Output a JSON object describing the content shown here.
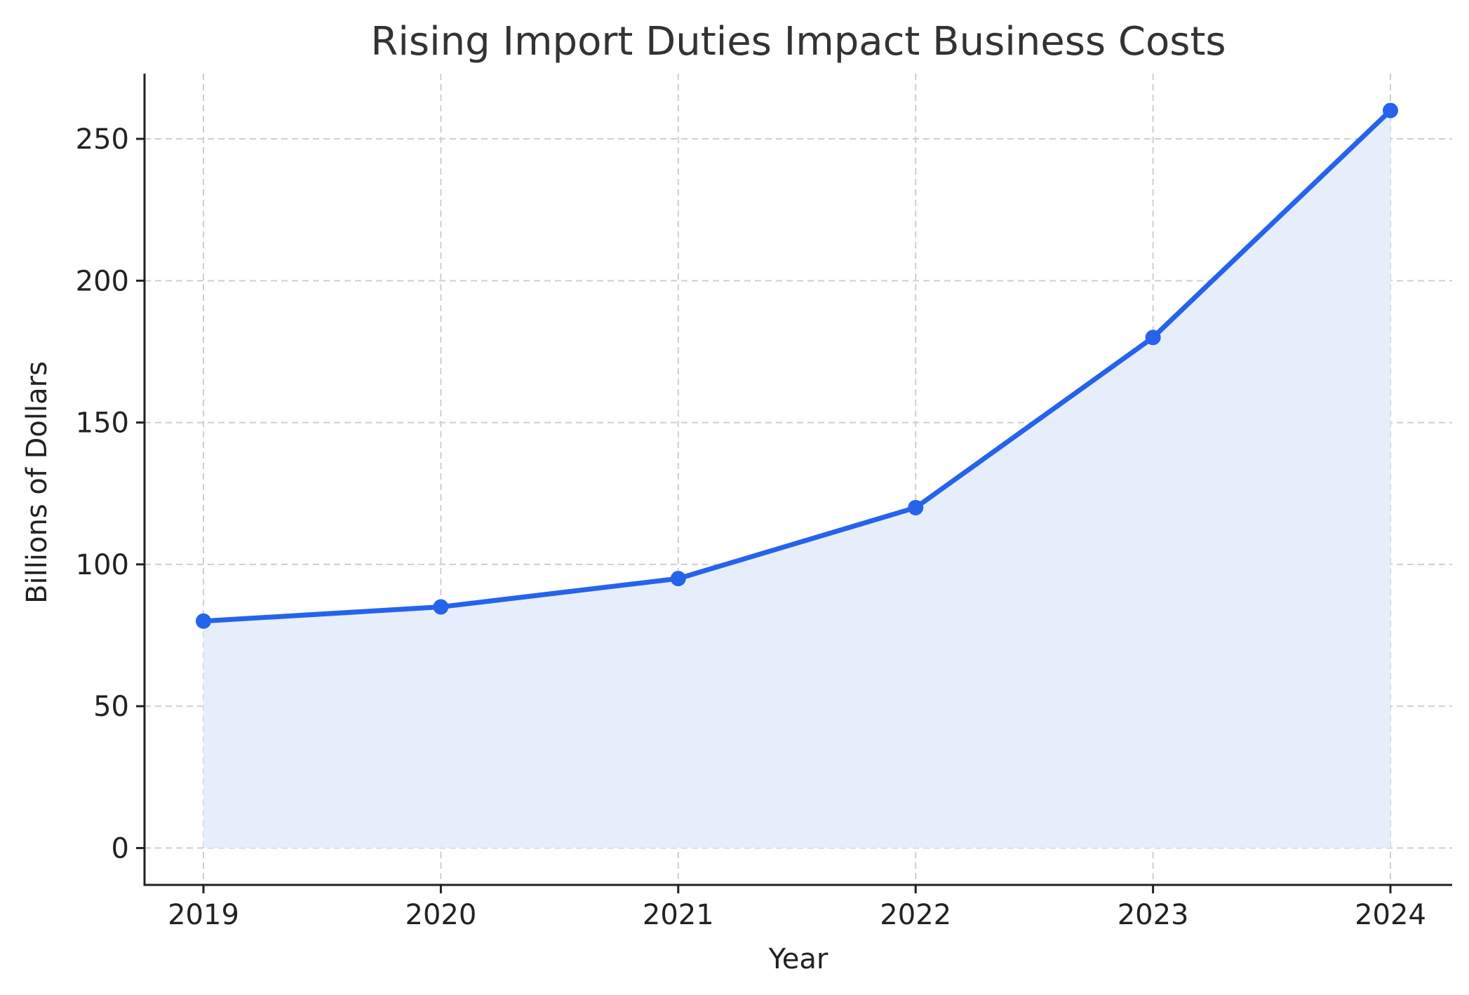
{
  "chart_data": {
    "type": "area",
    "title": "Rising Import Duties Impact Business Costs",
    "xlabel": "Year",
    "ylabel": "Billions of Dollars",
    "x": [
      "2019",
      "2020",
      "2021",
      "2022",
      "2023",
      "2024"
    ],
    "series": [
      {
        "values": [
          80,
          85,
          95,
          120,
          180,
          260
        ]
      }
    ],
    "ylim": [
      -13,
      273
    ],
    "yticks": [
      0,
      50,
      100,
      150,
      200,
      250
    ],
    "grid": true,
    "colors": {
      "line": "#2563eb",
      "fill": "#e5edfb"
    }
  }
}
